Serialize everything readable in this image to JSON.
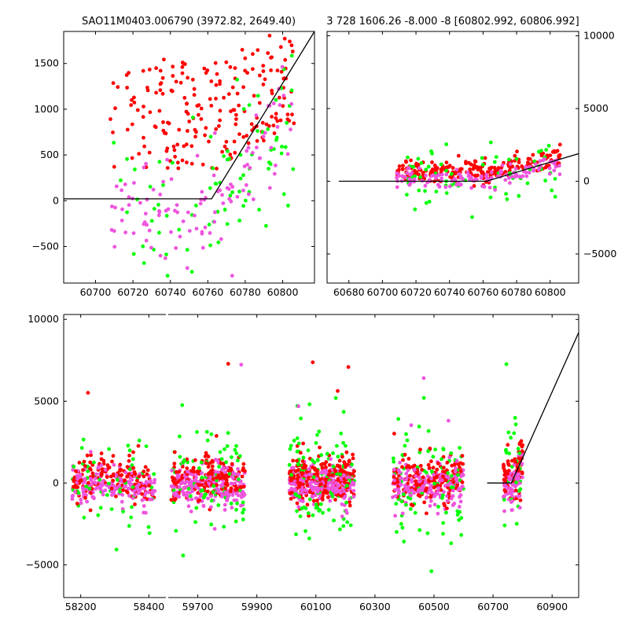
{
  "colors": {
    "series_red": "#ff0000",
    "series_green": "#00ff00",
    "series_magenta": "#ee55dd",
    "model": "#000000",
    "background": "#ffffff"
  },
  "chart_data": [
    {
      "id": "top-left",
      "type": "scatter",
      "title": "SAO11M0403.006790 (3972.82, 2649.40)",
      "xlim": [
        60683,
        60817
      ],
      "ylim": [
        -900,
        1850
      ],
      "xticks": [
        60700,
        60720,
        60740,
        60760,
        60780,
        60800
      ],
      "yticks": [
        -500,
        0,
        500,
        1000,
        1500
      ],
      "yaxis_side": "left",
      "grid": false,
      "point_region": {
        "x": [
          60708,
          60806
        ],
        "y": [
          -820,
          1820
        ]
      },
      "model_line": {
        "x": [
          60683,
          60762,
          60817
        ],
        "y": [
          20,
          20,
          1850
        ]
      },
      "counts": {
        "red": 210,
        "green": 85,
        "magenta": 110
      }
    },
    {
      "id": "top-right",
      "type": "scatter",
      "title": "3 728 1606.26 -8.000 -8 [60802.992, 60806.992]",
      "xlim": [
        60667,
        60817
      ],
      "ylim": [
        -7000,
        10300
      ],
      "xticks": [
        60680,
        60700,
        60720,
        60740,
        60760,
        60780,
        60800
      ],
      "yticks": [
        -5000,
        0,
        5000,
        10000
      ],
      "yaxis_side": "right",
      "grid": false,
      "point_region": {
        "x": [
          60708,
          60806
        ],
        "y": [
          -6000,
          6000
        ]
      },
      "model_line": {
        "x": [
          60674,
          60762,
          60817
        ],
        "y": [
          0,
          0,
          1900
        ]
      },
      "counts": {
        "red": 230,
        "green": 70,
        "magenta": 130
      }
    },
    {
      "id": "bottom",
      "type": "scatter",
      "title": "",
      "ylim": [
        -7000,
        10300
      ],
      "yticks": [
        -5000,
        0,
        5000,
        10000
      ],
      "yaxis_side": "left",
      "grid": false,
      "segments": [
        {
          "xlim": [
            58150,
            58450
          ],
          "xticks": [
            58200,
            58400
          ],
          "clusters": [
            {
              "x": [
                58175,
                58420
              ],
              "n": 380
            }
          ]
        },
        {
          "xlim": [
            59600,
            60990
          ],
          "xticks": [
            59700,
            59900,
            60100,
            60300,
            60500,
            60700,
            60900
          ],
          "clusters": [
            {
              "x": [
                59610,
                59860
              ],
              "n": 480
            },
            {
              "x": [
                60010,
                60230
              ],
              "n": 600
            },
            {
              "x": [
                60360,
                60600
              ],
              "n": 420
            },
            {
              "x": [
                60735,
                60800
              ],
              "n": 170
            }
          ]
        }
      ],
      "model_line": {
        "x": [
          60680,
          60762,
          60990
        ],
        "y": [
          0,
          0,
          9200
        ]
      }
    }
  ]
}
